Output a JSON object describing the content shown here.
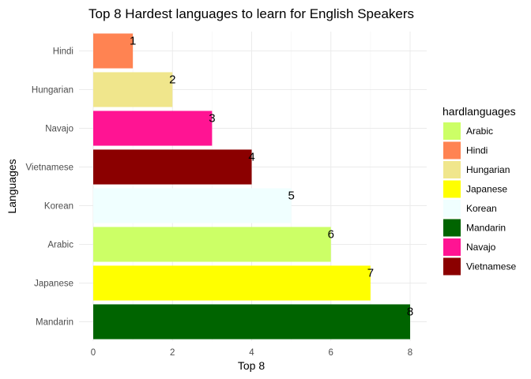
{
  "chart_data": {
    "type": "bar",
    "orientation": "horizontal",
    "title": "Top 8 Hardest languages to learn for English Speakers",
    "xlabel": "Top 8",
    "ylabel": "Languages",
    "xlim": [
      0,
      8.4
    ],
    "x_ticks": [
      0,
      2,
      4,
      6,
      8
    ],
    "categories": [
      "Mandarin",
      "Japanese",
      "Arabic",
      "Korean",
      "Vietnamese",
      "Navajo",
      "Hungarian",
      "Hindi"
    ],
    "values": [
      8,
      7,
      6,
      5,
      4,
      3,
      2,
      1
    ],
    "data_labels": [
      "8",
      "7",
      "6",
      "5",
      "4",
      "3",
      "2",
      "1"
    ],
    "grid": true,
    "legend": {
      "title": "hardlanguages",
      "position": "right",
      "items": [
        {
          "label": "Arabic",
          "color": "#CCFF66"
        },
        {
          "label": "Hindi",
          "color": "#FF8352"
        },
        {
          "label": "Hungarian",
          "color": "#F0E68C"
        },
        {
          "label": "Japanese",
          "color": "#FFFF00"
        },
        {
          "label": "Korean",
          "color": "#F0FFFF"
        },
        {
          "label": "Mandarin",
          "color": "#006400"
        },
        {
          "label": "Navajo",
          "color": "#FF1493"
        },
        {
          "label": "Vietnamese",
          "color": "#8B0000"
        }
      ]
    }
  }
}
